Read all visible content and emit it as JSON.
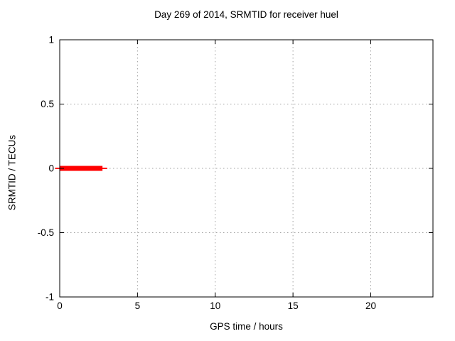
{
  "chart_data": {
    "type": "line",
    "title": "Day 269 of 2014, SRMTID for receiver huel",
    "xlabel": "GPS time / hours",
    "ylabel": "SRMTID / TECUs",
    "xlim": [
      0,
      24
    ],
    "ylim": [
      -1,
      1
    ],
    "xticks": [
      0,
      5,
      10,
      15,
      20
    ],
    "xtick_labels": [
      "0",
      "5",
      "10",
      "15",
      "20"
    ],
    "yticks": [
      -1,
      -0.5,
      0,
      0.5,
      1
    ],
    "ytick_labels": [
      "-1",
      "-0.5",
      "0",
      "0.5",
      "1"
    ],
    "grid": true,
    "grid_style": "dotted",
    "grid_color": "#a0a0a0",
    "frame_color": "#000000",
    "background_color": "#ffffff",
    "series": [
      {
        "name": "srmtid-thin-segment",
        "color": "#ff0000",
        "linewidth": 2,
        "points": [
          [
            -0.3,
            0
          ],
          [
            3.05,
            0
          ]
        ]
      },
      {
        "name": "srmtid-thick-segment",
        "color": "#ff0000",
        "linewidth": 7,
        "points": [
          [
            0,
            0
          ],
          [
            2.75,
            0
          ]
        ]
      }
    ]
  }
}
